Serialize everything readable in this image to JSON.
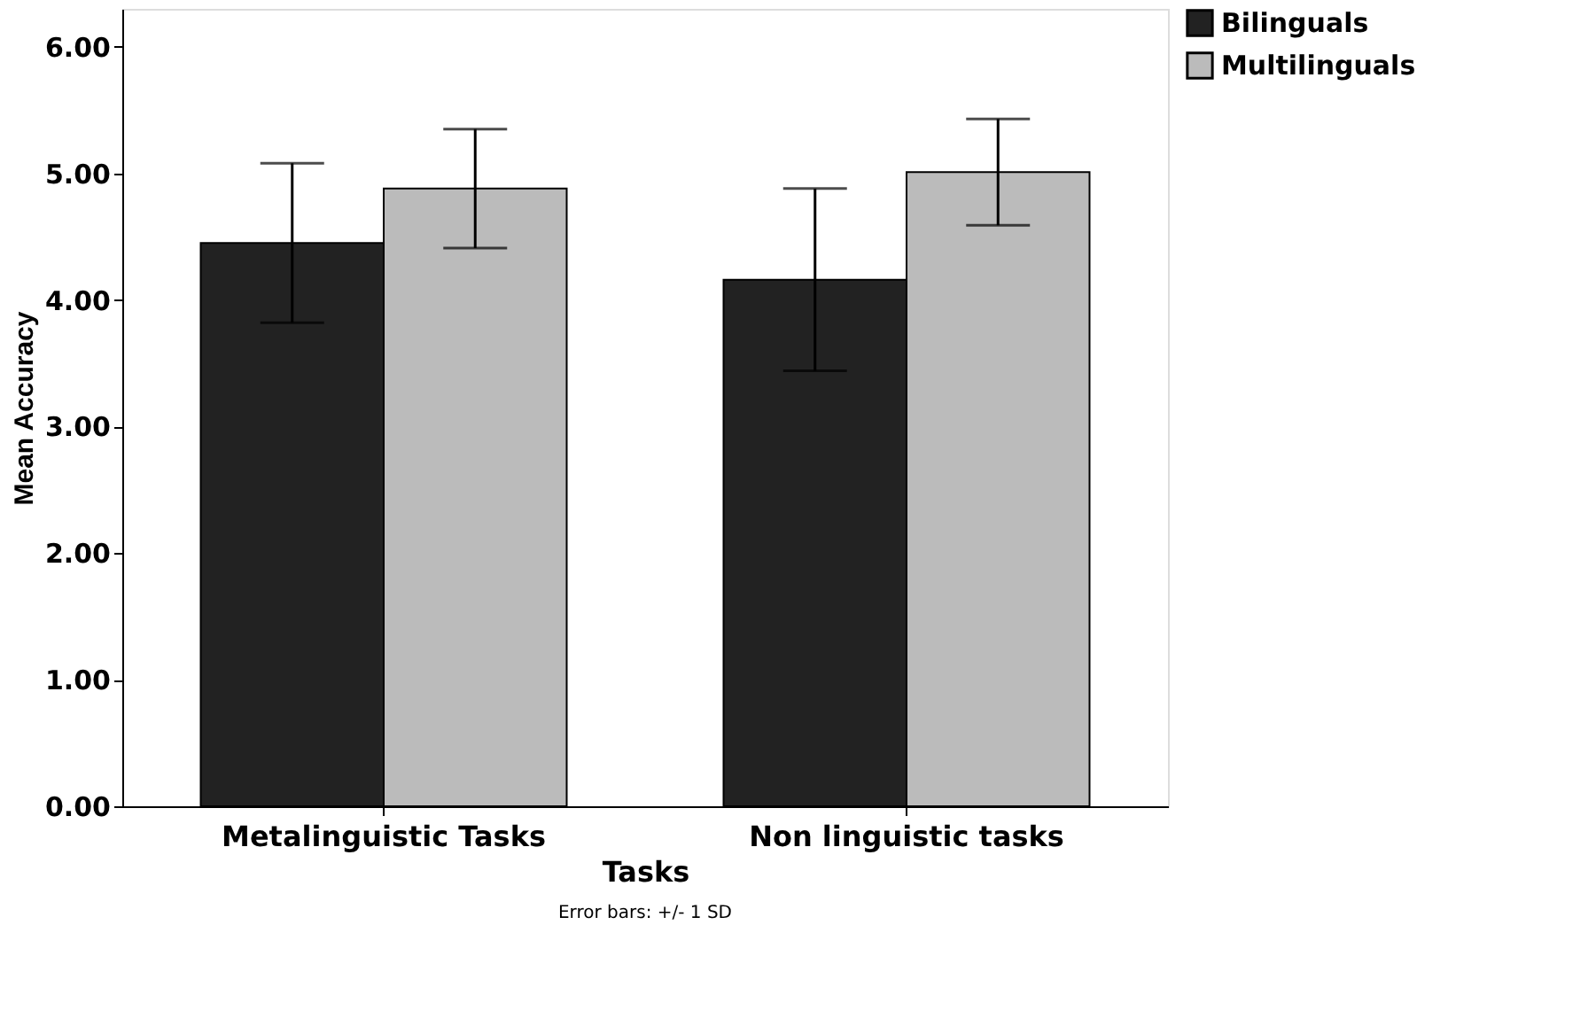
{
  "chart_data": {
    "type": "bar",
    "xlabel": "Tasks",
    "ylabel": "Mean Accuracy",
    "categories": [
      "Metalinguistic Tasks",
      "Non linguistic tasks"
    ],
    "series": [
      {
        "name": "Bilinguals",
        "color": "#222222",
        "values": [
          4.45,
          4.16
        ],
        "errors": [
          0.63,
          0.72
        ]
      },
      {
        "name": "Multilinguals",
        "color": "#bbbbbb",
        "values": [
          4.88,
          5.01
        ],
        "errors": [
          0.47,
          0.42
        ]
      }
    ],
    "ylim": [
      0,
      6.3
    ],
    "yticks": [
      {
        "value": 0,
        "label": "0.00"
      },
      {
        "value": 1,
        "label": "1.00"
      },
      {
        "value": 2,
        "label": "2.00"
      },
      {
        "value": 3,
        "label": "3.00"
      },
      {
        "value": 4,
        "label": "4.00"
      },
      {
        "value": 5,
        "label": "5.00"
      },
      {
        "value": 6,
        "label": "6.00"
      }
    ],
    "grid": false,
    "legend": "top right",
    "annotations": [
      "Error bars: +/- 1 SD"
    ]
  }
}
